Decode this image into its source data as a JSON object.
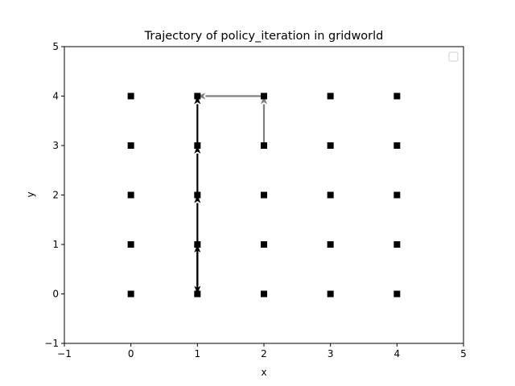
{
  "chart_data": {
    "type": "scatter",
    "title": "Trajectory of policy_iteration in gridworld",
    "xlabel": "x",
    "ylabel": "y",
    "xlim": [
      -1,
      5
    ],
    "ylim": [
      -1,
      5
    ],
    "xticks": [
      "−1",
      "0",
      "1",
      "2",
      "3",
      "4",
      "5"
    ],
    "yticks": [
      "−1",
      "0",
      "1",
      "2",
      "3",
      "4",
      "5"
    ],
    "grid": false,
    "legend": "top-right",
    "legend_entries": [],
    "states": [
      [
        0,
        0
      ],
      [
        0,
        1
      ],
      [
        0,
        2
      ],
      [
        0,
        3
      ],
      [
        0,
        4
      ],
      [
        1,
        0
      ],
      [
        1,
        1
      ],
      [
        1,
        2
      ],
      [
        1,
        3
      ],
      [
        1,
        4
      ],
      [
        2,
        0
      ],
      [
        2,
        1
      ],
      [
        2,
        2
      ],
      [
        2,
        3
      ],
      [
        2,
        4
      ],
      [
        3,
        0
      ],
      [
        3,
        1
      ],
      [
        3,
        2
      ],
      [
        3,
        3
      ],
      [
        3,
        4
      ],
      [
        4,
        0
      ],
      [
        4,
        1
      ],
      [
        4,
        2
      ],
      [
        4,
        3
      ],
      [
        4,
        4
      ]
    ],
    "trajectory": [
      {
        "from": [
          1,
          1
        ],
        "to": [
          1,
          0
        ],
        "color": "#000000"
      },
      {
        "from": [
          1,
          0
        ],
        "to": [
          1,
          1
        ],
        "color": "#000000"
      },
      {
        "from": [
          1,
          1
        ],
        "to": [
          1,
          2
        ],
        "color": "#000000"
      },
      {
        "from": [
          1,
          2
        ],
        "to": [
          1,
          3
        ],
        "color": "#000000"
      },
      {
        "from": [
          1,
          3
        ],
        "to": [
          1,
          4
        ],
        "color": "#000000"
      },
      {
        "from": [
          2,
          3
        ],
        "to": [
          2,
          4
        ],
        "color": "#808080"
      },
      {
        "from": [
          2,
          4
        ],
        "to": [
          1,
          4
        ],
        "color": "#808080"
      }
    ],
    "colors": {
      "marker": "#000000",
      "recent_arrow": "#808080",
      "axis": "#000000"
    }
  }
}
